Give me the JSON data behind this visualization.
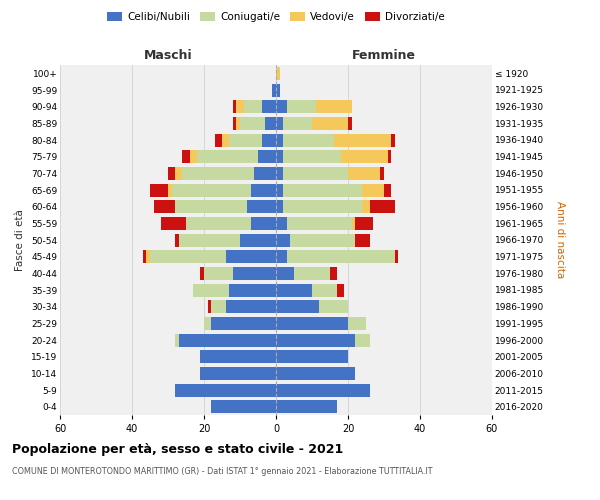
{
  "age_groups": [
    "0-4",
    "5-9",
    "10-14",
    "15-19",
    "20-24",
    "25-29",
    "30-34",
    "35-39",
    "40-44",
    "45-49",
    "50-54",
    "55-59",
    "60-64",
    "65-69",
    "70-74",
    "75-79",
    "80-84",
    "85-89",
    "90-94",
    "95-99",
    "100+"
  ],
  "birth_years": [
    "2016-2020",
    "2011-2015",
    "2006-2010",
    "2001-2005",
    "1996-2000",
    "1991-1995",
    "1986-1990",
    "1981-1985",
    "1976-1980",
    "1971-1975",
    "1966-1970",
    "1961-1965",
    "1956-1960",
    "1951-1955",
    "1946-1950",
    "1941-1945",
    "1936-1940",
    "1931-1935",
    "1926-1930",
    "1921-1925",
    "≤ 1920"
  ],
  "colors": {
    "celibe": "#4472C4",
    "coniugato": "#C5D9A0",
    "vedovo": "#F5C85C",
    "divorziato": "#CC1111"
  },
  "maschi": {
    "celibe": [
      18,
      28,
      21,
      21,
      27,
      18,
      14,
      13,
      12,
      14,
      10,
      7,
      8,
      7,
      6,
      5,
      4,
      3,
      4,
      1,
      0
    ],
    "coniugato": [
      0,
      0,
      0,
      0,
      1,
      2,
      4,
      10,
      8,
      21,
      17,
      18,
      20,
      22,
      20,
      17,
      9,
      7,
      5,
      0,
      0
    ],
    "vedovo": [
      0,
      0,
      0,
      0,
      0,
      0,
      0,
      0,
      0,
      1,
      0,
      0,
      0,
      1,
      2,
      2,
      2,
      1,
      2,
      0,
      0
    ],
    "divorziato": [
      0,
      0,
      0,
      0,
      0,
      0,
      1,
      0,
      1,
      1,
      1,
      7,
      6,
      5,
      2,
      2,
      2,
      1,
      1,
      0,
      0
    ]
  },
  "femmine": {
    "nubile": [
      17,
      26,
      22,
      20,
      22,
      20,
      12,
      10,
      5,
      3,
      4,
      3,
      2,
      2,
      2,
      2,
      2,
      2,
      3,
      1,
      0
    ],
    "coniugata": [
      0,
      0,
      0,
      0,
      4,
      5,
      8,
      7,
      10,
      30,
      18,
      18,
      22,
      22,
      18,
      16,
      14,
      8,
      8,
      0,
      0
    ],
    "vedova": [
      0,
      0,
      0,
      0,
      0,
      0,
      0,
      0,
      0,
      0,
      0,
      1,
      2,
      6,
      9,
      13,
      16,
      10,
      10,
      0,
      1
    ],
    "divorziata": [
      0,
      0,
      0,
      0,
      0,
      0,
      0,
      2,
      2,
      1,
      4,
      5,
      7,
      2,
      1,
      1,
      1,
      1,
      0,
      0,
      0
    ]
  },
  "xlim": 60,
  "title": "Popolazione per età, sesso e stato civile - 2021",
  "subtitle": "COMUNE DI MONTEROTONDO MARITTIMO (GR) - Dati ISTAT 1° gennaio 2021 - Elaborazione TUTTITALIA.IT",
  "ylabel_left": "Fasce di età",
  "ylabel_right": "Anni di nascita",
  "xlabel_left": "Maschi",
  "xlabel_right": "Femmine",
  "legend_labels": [
    "Celibi/Nubili",
    "Coniugati/e",
    "Vedovi/e",
    "Divorziati/e"
  ],
  "bg_color": "#FFFFFF",
  "plot_bg_color": "#F0F0F0",
  "grid_color": "#CCCCCC"
}
